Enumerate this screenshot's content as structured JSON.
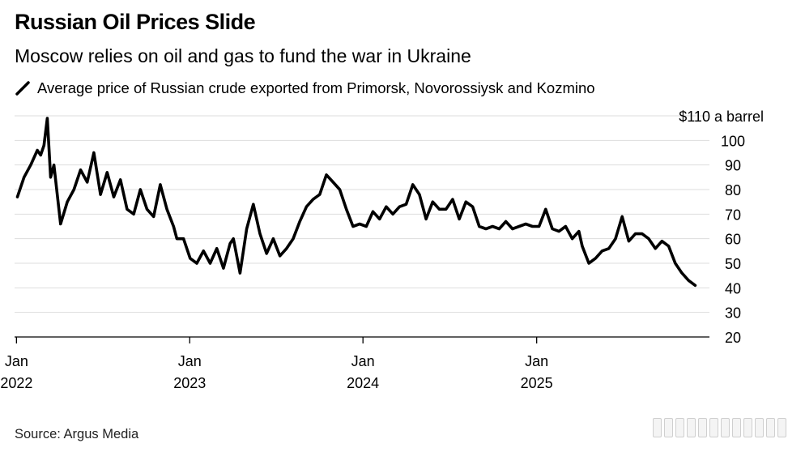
{
  "header": {
    "title": "Russian Oil Prices Slide",
    "subtitle": "Moscow relies on oil and gas to fund the war in Ukraine"
  },
  "footer": {
    "source": "Source: Argus Media"
  },
  "colors": {
    "line": "#000000",
    "grid": "#dddddd",
    "axis": "#000000"
  },
  "chart_data": {
    "type": "line",
    "title": "Russian Oil Prices Slide",
    "subtitle": "Moscow relies on oil and gas to fund the war in Ukraine",
    "ylabel": "",
    "xlabel": "",
    "ylim": [
      20,
      110
    ],
    "xlim": [
      "2021-12-28",
      "2025-12-31"
    ],
    "y_axis_side": "right",
    "y_ticks": [
      20,
      30,
      40,
      50,
      60,
      70,
      80,
      90,
      100,
      110
    ],
    "y_tick_labels": [
      "20",
      "30",
      "40",
      "50",
      "60",
      "70",
      "80",
      "90",
      "100",
      "$110 a barrel"
    ],
    "x_ticks": [
      {
        "date": "2022-01-01",
        "label_top": "Jan",
        "label_bottom": "2022"
      },
      {
        "date": "2023-01-01",
        "label_top": "Jan",
        "label_bottom": "2023"
      },
      {
        "date": "2024-01-01",
        "label_top": "Jan",
        "label_bottom": "2024"
      },
      {
        "date": "2025-01-01",
        "label_top": "Jan",
        "label_bottom": "2025"
      }
    ],
    "grid": true,
    "legend": "top-left",
    "series": [
      {
        "name": "Average price of Russian crude exported from Primorsk, Novorossiysk and Kozmino",
        "x": [
          "2022-01-03",
          "2022-01-17",
          "2022-01-31",
          "2022-02-14",
          "2022-02-21",
          "2022-02-28",
          "2022-03-07",
          "2022-03-14",
          "2022-03-21",
          "2022-04-04",
          "2022-04-18",
          "2022-05-02",
          "2022-05-16",
          "2022-05-30",
          "2022-06-13",
          "2022-06-27",
          "2022-07-11",
          "2022-07-25",
          "2022-08-08",
          "2022-08-22",
          "2022-09-05",
          "2022-09-19",
          "2022-10-03",
          "2022-10-17",
          "2022-10-31",
          "2022-11-14",
          "2022-11-28",
          "2022-12-05",
          "2022-12-19",
          "2023-01-02",
          "2023-01-16",
          "2023-01-30",
          "2023-02-13",
          "2023-02-27",
          "2023-03-13",
          "2023-03-27",
          "2023-04-03",
          "2023-04-17",
          "2023-05-01",
          "2023-05-15",
          "2023-05-29",
          "2023-06-12",
          "2023-06-26",
          "2023-07-10",
          "2023-07-24",
          "2023-08-07",
          "2023-08-21",
          "2023-09-04",
          "2023-09-18",
          "2023-10-02",
          "2023-10-16",
          "2023-10-30",
          "2023-11-13",
          "2023-11-27",
          "2023-12-11",
          "2023-12-25",
          "2024-01-08",
          "2024-01-22",
          "2024-02-05",
          "2024-02-19",
          "2024-03-04",
          "2024-03-18",
          "2024-04-01",
          "2024-04-15",
          "2024-04-29",
          "2024-05-13",
          "2024-05-27",
          "2024-06-10",
          "2024-06-24",
          "2024-07-08",
          "2024-07-22",
          "2024-08-05",
          "2024-08-19",
          "2024-09-02",
          "2024-09-16",
          "2024-09-30",
          "2024-10-14",
          "2024-10-28",
          "2024-11-11",
          "2024-11-25",
          "2024-12-09",
          "2024-12-23",
          "2025-01-06",
          "2025-01-20",
          "2025-02-03",
          "2025-02-17",
          "2025-03-03",
          "2025-03-17",
          "2025-03-31",
          "2025-04-07",
          "2025-04-21",
          "2025-05-05",
          "2025-05-19",
          "2025-06-02",
          "2025-06-16",
          "2025-06-30",
          "2025-07-14",
          "2025-07-28",
          "2025-08-11",
          "2025-08-25",
          "2025-09-08",
          "2025-09-22",
          "2025-10-06",
          "2025-10-20",
          "2025-11-03",
          "2025-11-17",
          "2025-12-01"
        ],
        "values": [
          77,
          85,
          90,
          96,
          94,
          98,
          109,
          85,
          90,
          66,
          75,
          80,
          88,
          83,
          95,
          78,
          87,
          77,
          84,
          72,
          70,
          80,
          72,
          69,
          82,
          72,
          65,
          60,
          60,
          52,
          50,
          55,
          50,
          56,
          48,
          58,
          60,
          46,
          64,
          74,
          62,
          54,
          60,
          53,
          56,
          60,
          67,
          73,
          76,
          78,
          86,
          83,
          80,
          72,
          65,
          66,
          65,
          71,
          68,
          73,
          70,
          73,
          74,
          82,
          78,
          68,
          75,
          72,
          72,
          76,
          68,
          75,
          73,
          65,
          64,
          65,
          64,
          67,
          64,
          65,
          66,
          65,
          65,
          72,
          64,
          63,
          65,
          60,
          63,
          57,
          50,
          52,
          55,
          56,
          60,
          69,
          59,
          62,
          62,
          60,
          56,
          59,
          57,
          50,
          46,
          43,
          41
        ]
      }
    ]
  }
}
